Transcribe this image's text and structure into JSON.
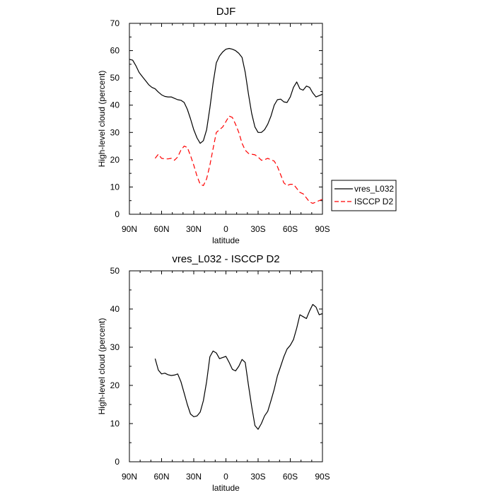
{
  "chart_data": [
    {
      "type": "line",
      "title": "DJF",
      "xlabel": "latitude",
      "ylabel": "High-level cloud (percent)",
      "xlim": [
        90,
        -90
      ],
      "ylim": [
        0,
        70
      ],
      "xticks": [
        90,
        60,
        30,
        0,
        -30,
        -60,
        -90
      ],
      "xticklabels": [
        "90N",
        "60N",
        "30N",
        "0",
        "30S",
        "60S",
        "90S"
      ],
      "yticks": [
        0,
        10,
        20,
        30,
        40,
        50,
        60,
        70
      ],
      "yticklabels": [
        "0",
        "10",
        "20",
        "30",
        "40",
        "50",
        "60",
        "70"
      ],
      "legend": "right",
      "series": [
        {
          "name": "ISCCP D2",
          "color": "#ff0000",
          "dash": true,
          "x": [
            66,
            63,
            60,
            57,
            54,
            51,
            48,
            45,
            42,
            39,
            36,
            33,
            30,
            27,
            24,
            21,
            18,
            15,
            12,
            9,
            6,
            3,
            0,
            -3,
            -6,
            -9,
            -12,
            -15,
            -18,
            -21,
            -24,
            -27,
            -30,
            -33,
            -36,
            -39,
            -42,
            -45,
            -48,
            -51,
            -54,
            -57,
            -60,
            -63,
            -66,
            -69,
            -72,
            -75,
            -78,
            -81,
            -84,
            -87,
            -90
          ],
          "y": [
            20.5,
            22,
            20.5,
            20.3,
            20.3,
            20.5,
            19.8,
            21,
            23.5,
            25,
            24.5,
            21.5,
            18,
            14,
            11,
            10.5,
            13,
            18,
            24,
            30,
            31,
            32,
            34,
            36,
            35.5,
            33,
            30,
            26,
            23.5,
            22.3,
            22,
            21.8,
            21,
            19.8,
            20,
            20.5,
            20,
            19.5,
            17.5,
            14.5,
            11.5,
            10.5,
            11,
            11,
            9.5,
            8,
            7.5,
            6,
            4.5,
            4,
            4.5,
            5,
            5.5
          ]
        },
        {
          "name": "vres_L032",
          "color": "#000000",
          "dash": false,
          "x": [
            90,
            87,
            84,
            81,
            78,
            75,
            72,
            69,
            66,
            63,
            60,
            57,
            54,
            51,
            48,
            45,
            42,
            39,
            36,
            33,
            30,
            27,
            24,
            21,
            18,
            15,
            12,
            9,
            6,
            3,
            0,
            -3,
            -6,
            -9,
            -12,
            -15,
            -18,
            -21,
            -24,
            -27,
            -30,
            -33,
            -36,
            -39,
            -42,
            -45,
            -48,
            -51,
            -54,
            -57,
            -60,
            -63,
            -66,
            -69,
            -72,
            -75,
            -78,
            -81,
            -84,
            -87,
            -90
          ],
          "y": [
            56.8,
            56.5,
            54.5,
            52,
            50.5,
            49,
            47.5,
            46.5,
            46,
            44.8,
            43.8,
            43.2,
            43,
            43,
            42.5,
            42,
            41.8,
            41,
            38.5,
            35,
            31,
            28,
            26,
            27,
            31,
            39,
            48,
            55.5,
            58,
            59.5,
            60.5,
            60.8,
            60.5,
            60,
            59,
            57.5,
            52,
            44,
            37,
            32,
            30,
            30,
            31,
            33,
            36,
            40,
            42,
            42.2,
            41.2,
            41,
            43,
            46.5,
            48.5,
            46,
            45.5,
            47,
            46.5,
            44.5,
            43,
            43.5,
            44
          ]
        }
      ]
    },
    {
      "type": "line",
      "title": "vres_L032 - ISCCP D2",
      "xlabel": "latitude",
      "ylabel": "High-level cloud (percent)",
      "xlim": [
        90,
        -90
      ],
      "ylim": [
        0,
        50
      ],
      "xticks": [
        90,
        60,
        30,
        0,
        -30,
        -60,
        -90
      ],
      "xticklabels": [
        "90N",
        "60N",
        "30N",
        "0",
        "30S",
        "60S",
        "90S"
      ],
      "yticks": [
        0,
        10,
        20,
        30,
        40,
        50
      ],
      "yticklabels": [
        "0",
        "10",
        "20",
        "30",
        "40",
        "50"
      ],
      "series": [
        {
          "color": "#000000",
          "dash": false,
          "x": [
            66,
            63,
            60,
            57,
            54,
            51,
            48,
            45,
            42,
            39,
            36,
            33,
            30,
            27,
            24,
            21,
            18,
            15,
            12,
            9,
            6,
            3,
            0,
            -3,
            -6,
            -9,
            -12,
            -15,
            -18,
            -21,
            -24,
            -27,
            -30,
            -33,
            -36,
            -39,
            -42,
            -45,
            -48,
            -51,
            -54,
            -57,
            -60,
            -63,
            -66,
            -69,
            -72,
            -75,
            -78,
            -81,
            -84,
            -87,
            -90
          ],
          "y": [
            27,
            24,
            23,
            23.2,
            22.8,
            22.6,
            22.7,
            23,
            21,
            18,
            15,
            12.5,
            11.8,
            12,
            13,
            16,
            21,
            27.5,
            29,
            28.5,
            27,
            27.3,
            27.6,
            26,
            24.2,
            23.8,
            25,
            26.8,
            26,
            20,
            14.5,
            9.5,
            8.5,
            10,
            12,
            13.2,
            16,
            19,
            22.5,
            25,
            27.5,
            29.5,
            30.5,
            32,
            35,
            38.5,
            38,
            37.5,
            39.5,
            41.2,
            40.5,
            38.5,
            38.8
          ]
        }
      ]
    }
  ]
}
